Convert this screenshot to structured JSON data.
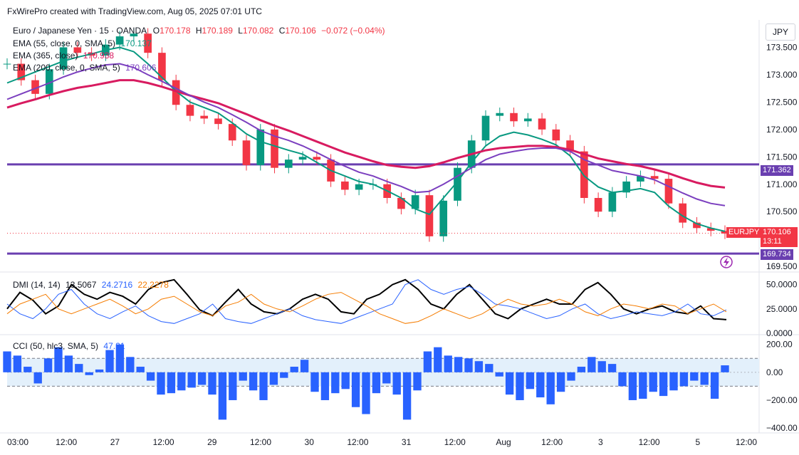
{
  "header": {
    "attribution": "FxWirePro created with TradingView.com, Aug 05, 2025 07:01 UTC",
    "symbol": "Euro / Japanese Yen · 15 · OANDA",
    "o_label": "O",
    "o_value": "170.178",
    "h_label": "H",
    "h_value": "170.189",
    "l_label": "L",
    "l_value": "170.082",
    "c_label": "C",
    "c_value": "170.106",
    "change": "−0.072 (−0.04%)",
    "currency": "JPY"
  },
  "indicators": {
    "ema55_label": "EMA (55, close, 0, SMA, 5)",
    "ema55_value": "170.137",
    "ema365_label": "EMA (365, close)",
    "ema365_value": "170.938",
    "ema200_label": "EMA (200, close, 0, SMA, 5)",
    "ema200_value": "170.606",
    "dmi_label": "DMI (14, 14)",
    "dmi_adx": "13.5067",
    "dmi_plus": "24.2716",
    "dmi_minus": "22.2278",
    "cci_label": "CCI (50, hlc3, SMA, 5)",
    "cci_value": "47.21"
  },
  "price_badges": {
    "resistance": "171.362",
    "symbol_tag": "EURJPY",
    "last_price": "170.106",
    "countdown": "13:11",
    "support": "169.734"
  },
  "chart_data": {
    "type": "line",
    "panels": [
      {
        "name": "price",
        "ylim": [
          169.45,
          174.0
        ],
        "y_ticks": [
          "173.500",
          "173.000",
          "172.500",
          "172.000",
          "171.500",
          "171.000",
          "170.500",
          "169.500"
        ],
        "horizontal_levels": [
          171.362,
          169.734
        ],
        "series": [
          {
            "name": "Euro / Japanese Yen",
            "style": "candles",
            "values": [
              173.2,
              172.9,
              172.65,
              173.1,
              173.5,
              173.4,
              173.35,
              173.55,
              173.7,
              173.75,
              173.4,
              172.9,
              172.45,
              172.25,
              172.2,
              172.1,
              171.8,
              171.35,
              172.0,
              171.3,
              171.45,
              171.5,
              171.45,
              171.05,
              170.9,
              171.0,
              171.0,
              170.75,
              170.55,
              170.8,
              170.05,
              170.7,
              171.3,
              171.8,
              172.25,
              172.3,
              172.15,
              172.2,
              172.0,
              171.8,
              171.6,
              170.75,
              170.5,
              170.85,
              171.05,
              171.15,
              171.1,
              170.65,
              170.3,
              170.2,
              170.15,
              170.1
            ]
          },
          {
            "name": "EMA (55, close, 0, SMA, 5)",
            "color": "#089981",
            "values": [
              172.85,
              172.95,
              173.05,
              173.15,
              173.25,
              173.32,
              173.38,
              173.45,
              173.5,
              173.42,
              173.2,
              172.95,
              172.7,
              172.5,
              172.4,
              172.3,
              172.12,
              171.92,
              171.78,
              171.7,
              171.62,
              171.55,
              171.4,
              171.25,
              171.15,
              171.05,
              171.0,
              170.88,
              170.75,
              170.55,
              170.45,
              170.75,
              171.05,
              171.4,
              171.7,
              171.88,
              171.95,
              171.9,
              171.82,
              171.72,
              171.52,
              171.15,
              170.95,
              170.85,
              170.88,
              170.92,
              170.85,
              170.6,
              170.42,
              170.28,
              170.2,
              170.14
            ]
          },
          {
            "name": "EMA (365, close)",
            "color": "#d81b60",
            "values": [
              172.4,
              172.48,
              172.55,
              172.63,
              172.7,
              172.76,
              172.8,
              172.85,
              172.9,
              172.9,
              172.85,
              172.78,
              172.7,
              172.62,
              172.55,
              172.48,
              172.38,
              172.28,
              172.17,
              172.07,
              171.98,
              171.88,
              171.78,
              171.68,
              171.58,
              171.5,
              171.42,
              171.35,
              171.32,
              171.3,
              171.33,
              171.4,
              171.48,
              171.55,
              171.62,
              171.66,
              171.68,
              171.7,
              171.7,
              171.68,
              171.63,
              171.55,
              171.47,
              171.42,
              171.37,
              171.33,
              171.27,
              171.2,
              171.11,
              171.03,
              170.97,
              170.94
            ]
          },
          {
            "name": "EMA (200, close, 0, SMA, 5)",
            "color": "#7b3fbf",
            "values": [
              172.55,
              172.65,
              172.75,
              172.85,
              172.96,
              173.05,
              173.12,
              173.18,
              173.2,
              173.13,
              173.0,
              172.88,
              172.75,
              172.62,
              172.5,
              172.4,
              172.27,
              172.13,
              171.98,
              171.88,
              171.8,
              171.7,
              171.58,
              171.45,
              171.33,
              171.22,
              171.15,
              171.05,
              170.96,
              170.85,
              170.87,
              171.0,
              171.15,
              171.3,
              171.45,
              171.55,
              171.6,
              171.64,
              171.66,
              171.66,
              171.6,
              171.45,
              171.35,
              171.25,
              171.2,
              171.15,
              171.08,
              170.96,
              170.84,
              170.73,
              170.65,
              170.61
            ]
          }
        ]
      },
      {
        "name": "dmi",
        "ylim": [
          0,
          60
        ],
        "y_ticks": [
          "50.0000",
          "25.0000",
          "0.0000"
        ],
        "series": [
          {
            "name": "ADX",
            "color": "#000000",
            "values": [
              25,
              42,
              34,
              20,
              28,
              50,
              40,
              35,
              42,
              38,
              30,
              45,
              52,
              55,
              40,
              24,
              18,
              32,
              45,
              30,
              22,
              20,
              25,
              35,
              40,
              35,
              22,
              20,
              35,
              40,
              50,
              55,
              45,
              30,
              25,
              40,
              50,
              35,
              20,
              15,
              25,
              30,
              35,
              30,
              30,
              45,
              52,
              40,
              25,
              20,
              25,
              28,
              22,
              20,
              28,
              15,
              14
            ]
          },
          {
            "name": "+DI",
            "color": "#2962ff",
            "values": [
              30,
              20,
              15,
              25,
              40,
              45,
              30,
              20,
              15,
              22,
              28,
              18,
              12,
              10,
              15,
              20,
              30,
              15,
              12,
              10,
              15,
              20,
              25,
              18,
              14,
              12,
              10,
              15,
              20,
              25,
              30,
              50,
              55,
              45,
              40,
              45,
              48,
              40,
              30,
              28,
              25,
              20,
              15,
              18,
              25,
              30,
              20,
              15,
              18,
              22,
              20,
              18,
              22,
              30,
              20,
              18,
              24
            ]
          },
          {
            "name": "−DI",
            "color": "#f57c00",
            "values": [
              20,
              30,
              35,
              40,
              25,
              20,
              25,
              30,
              35,
              28,
              20,
              25,
              35,
              38,
              30,
              22,
              18,
              28,
              32,
              40,
              30,
              25,
              22,
              28,
              35,
              40,
              42,
              35,
              28,
              20,
              15,
              10,
              12,
              18,
              25,
              20,
              15,
              20,
              28,
              35,
              30,
              28,
              30,
              35,
              30,
              22,
              18,
              25,
              30,
              28,
              25,
              30,
              28,
              20,
              25,
              30,
              22
            ]
          }
        ]
      },
      {
        "name": "cci",
        "ylim": [
          -420,
          260
        ],
        "y_ticks": [
          "200.00",
          "0.00",
          "−200.00",
          "−400.00"
        ],
        "band": [
          100,
          -100
        ],
        "series": [
          {
            "name": "CCI",
            "style": "histogram",
            "values": [
              150,
              120,
              40,
              -80,
              100,
              180,
              120,
              60,
              -20,
              20,
              160,
              200,
              110,
              40,
              -60,
              -160,
              -150,
              -130,
              -110,
              -90,
              -160,
              -340,
              -200,
              -60,
              -130,
              -200,
              -90,
              -40,
              40,
              90,
              -140,
              -200,
              -150,
              -120,
              -250,
              -300,
              -150,
              -80,
              -160,
              -340,
              -130,
              150,
              180,
              120,
              110,
              100,
              80,
              60,
              -30,
              -160,
              -200,
              -120,
              -180,
              -230,
              -140,
              -60,
              40,
              110,
              80,
              60,
              -100,
              -200,
              -190,
              -140,
              -170,
              -130,
              -100,
              -60,
              -90,
              -190,
              50
            ]
          }
        ]
      }
    ],
    "x_ticks": [
      "03:00",
      "12:00",
      "27",
      "12:00",
      "29",
      "12:00",
      "30",
      "12:00",
      "31",
      "12:00",
      "Aug",
      "12:00",
      "3",
      "12:00",
      "5",
      "12:00"
    ]
  }
}
